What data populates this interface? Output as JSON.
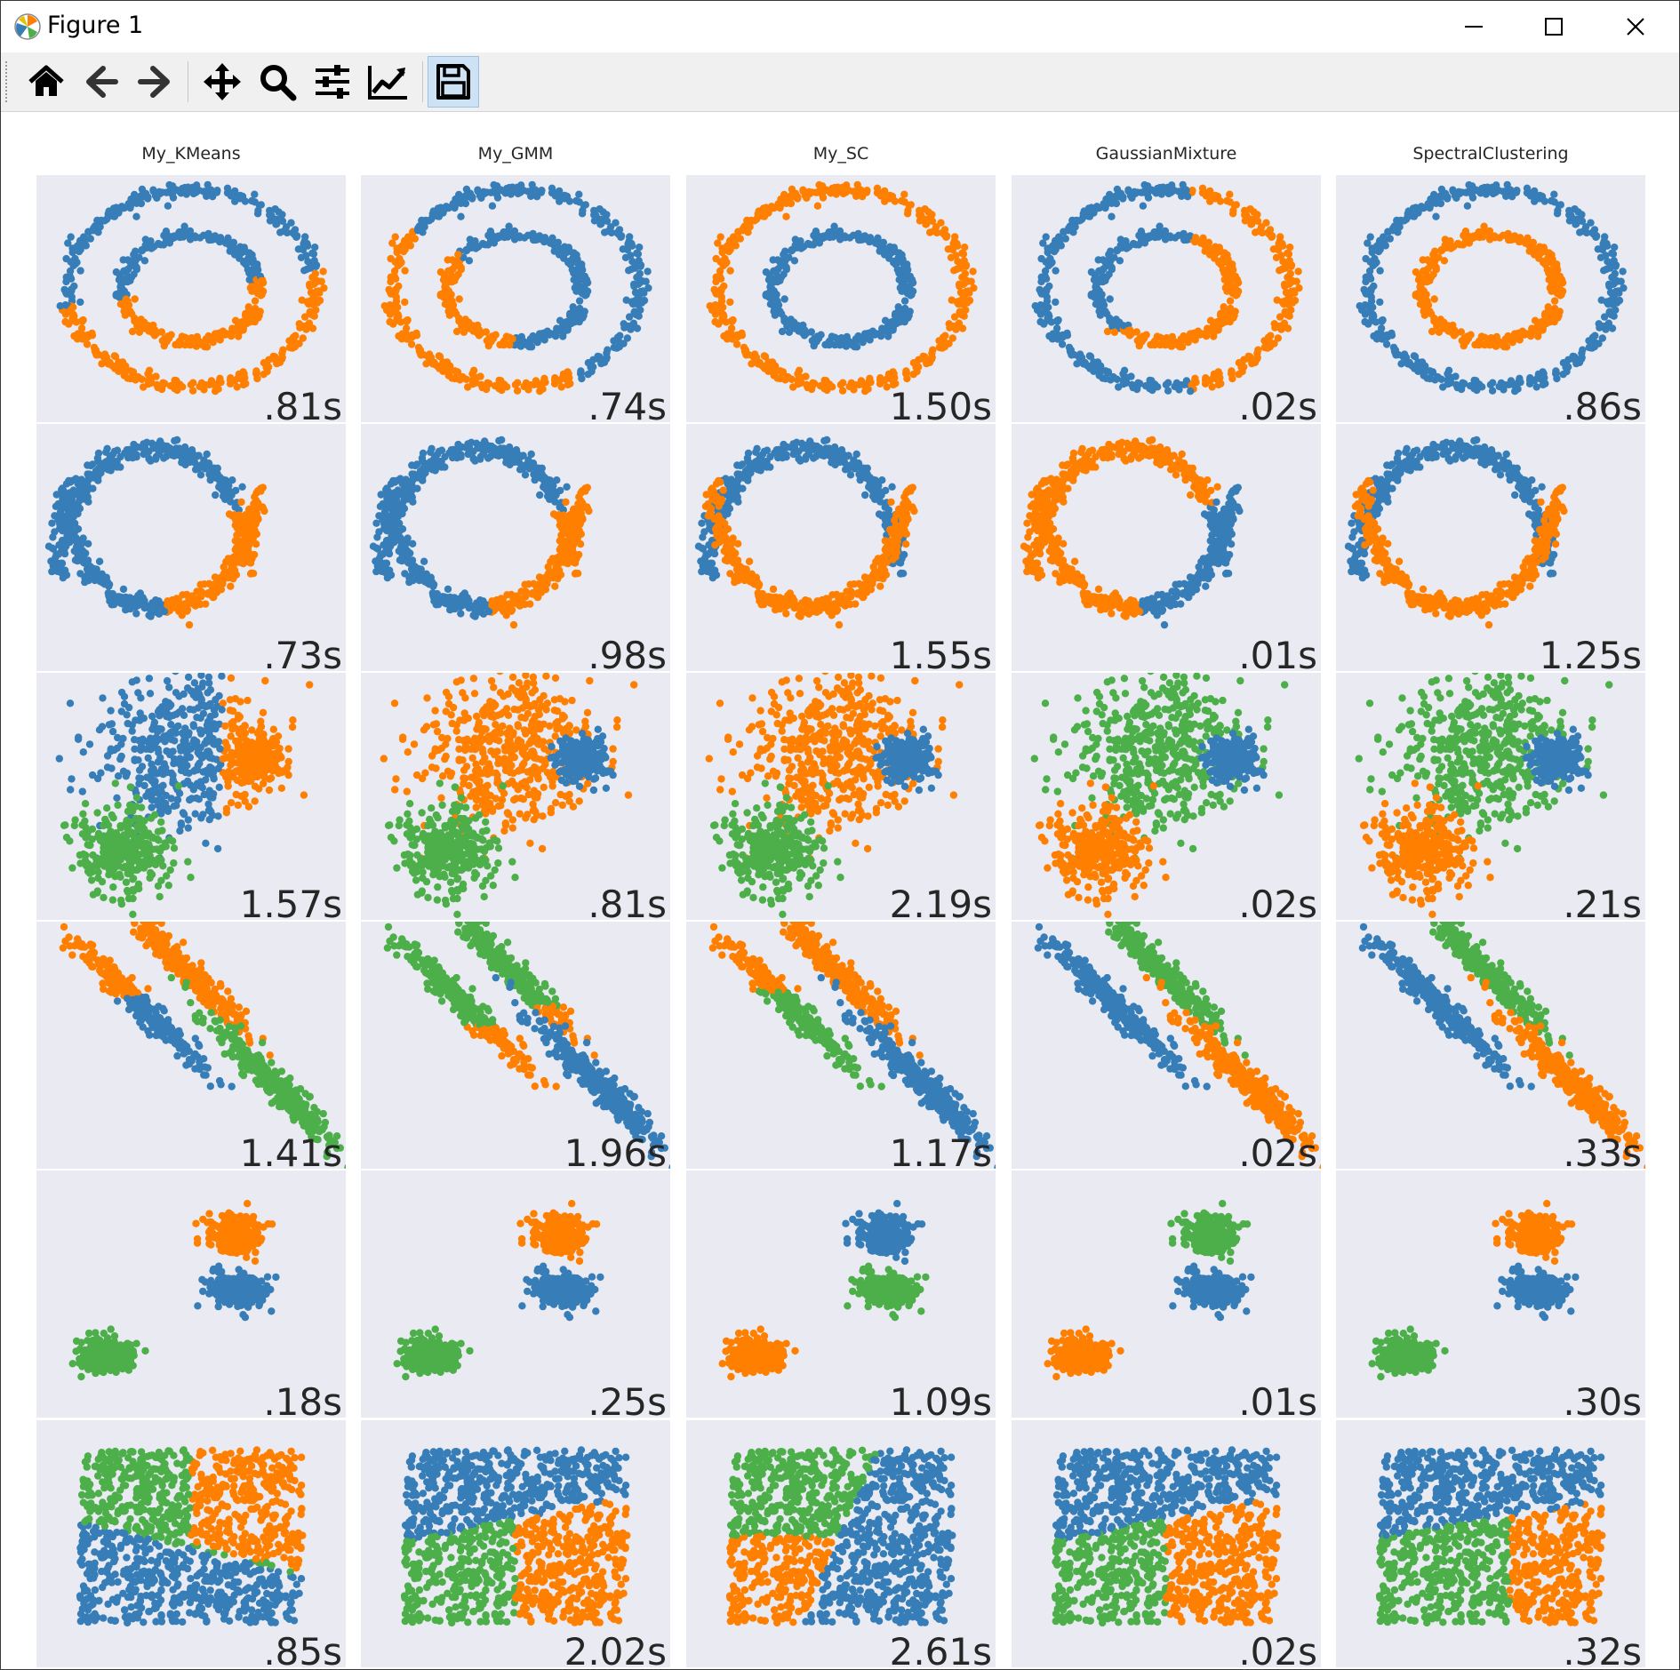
{
  "window": {
    "title": "Figure 1",
    "icon": "matplotlib-icon"
  },
  "toolbar": {
    "buttons": [
      {
        "name": "home-button",
        "icon": "home-icon"
      },
      {
        "name": "back-button",
        "icon": "arrow-left-icon"
      },
      {
        "name": "forward-button",
        "icon": "arrow-right-icon"
      },
      {
        "name": "pan-button",
        "icon": "move-icon"
      },
      {
        "name": "zoom-button",
        "icon": "magnifier-icon"
      },
      {
        "name": "configure-subplots-button",
        "icon": "sliders-icon"
      },
      {
        "name": "edit-axis-button",
        "icon": "line-chart-icon"
      },
      {
        "name": "save-button",
        "icon": "floppy-disk-icon"
      }
    ]
  },
  "colors": {
    "blue": "#377eb8",
    "orange": "#ff7f00",
    "green": "#4daf4a",
    "panel": "#eaeaf2"
  },
  "columns": [
    "My_KMeans",
    "My_GMM",
    "My_SC",
    "GaussianMixture",
    "SpectralClustering"
  ],
  "datasets": [
    "noisy_circles",
    "noisy_moons",
    "varied",
    "aniso",
    "blobs",
    "no_structure"
  ],
  "times": [
    [
      ".81s",
      ".74s",
      "1.50s",
      ".02s",
      ".86s"
    ],
    [
      ".73s",
      ".98s",
      "1.55s",
      ".01s",
      "1.25s"
    ],
    [
      "1.57s",
      ".81s",
      "2.19s",
      ".02s",
      ".21s"
    ],
    [
      "1.41s",
      "1.96s",
      "1.17s",
      ".02s",
      ".33s"
    ],
    [
      ".18s",
      ".25s",
      "1.09s",
      ".01s",
      ".30s"
    ],
    [
      ".85s",
      "2.02s",
      "2.61s",
      ".02s",
      ".32s"
    ]
  ]
}
